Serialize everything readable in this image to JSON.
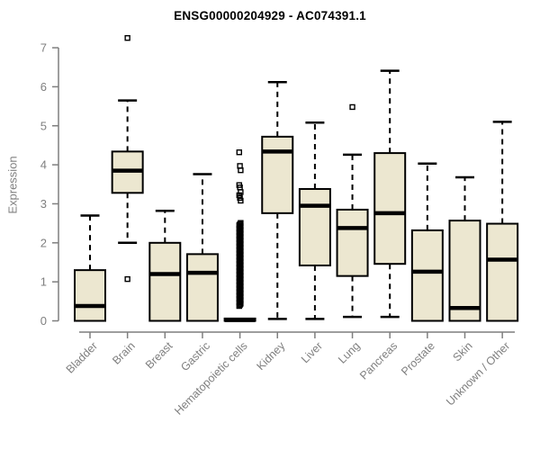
{
  "title": "ENSG00000204929 - AC074391.1",
  "chart_data": {
    "type": "box",
    "title": "ENSG00000204929 - AC074391.1",
    "ylabel": "Expression",
    "xlabel": "",
    "ylim": [
      0,
      7
    ],
    "yticks": [
      0,
      1,
      2,
      3,
      4,
      5,
      6,
      7
    ],
    "grid": false,
    "legend": "none",
    "colors": {
      "box_fill": "#ece7d0",
      "box_stroke": "#000000",
      "median": "#000000",
      "whisker": "#000000",
      "axis": "#7f7f7f",
      "tick_label": "#7f7f7f",
      "title": "#000000",
      "background": "#ffffff"
    },
    "categories": [
      "Bladder",
      "Brain",
      "Breast",
      "Gastric",
      "Hematopoietic cells",
      "Kidney",
      "Liver",
      "Lung",
      "Pancreas",
      "Prostate",
      "Skin",
      "Unknown / Other"
    ],
    "series": [
      {
        "name": "Bladder",
        "low": 0,
        "q1": 0,
        "median": 0.38,
        "q3": 1.3,
        "high": 2.7,
        "outliers": []
      },
      {
        "name": "Brain",
        "low": 2.0,
        "q1": 3.28,
        "median": 3.85,
        "q3": 4.34,
        "high": 5.65,
        "outliers": [
          7.25,
          1.07
        ]
      },
      {
        "name": "Breast",
        "low": 0,
        "q1": 0,
        "median": 1.2,
        "q3": 2.0,
        "high": 2.82,
        "outliers": []
      },
      {
        "name": "Gastric",
        "low": 0,
        "q1": 0,
        "median": 1.23,
        "q3": 1.71,
        "high": 3.76,
        "outliers": []
      },
      {
        "name": "Hematopoietic cells",
        "low": 0,
        "q1": 0,
        "median": 0.02,
        "q3": 0.06,
        "high": 0.06,
        "outliers": [
          4.32,
          3.97,
          3.86,
          3.48,
          3.42,
          3.3,
          3.22,
          3.15,
          3.08
        ],
        "outlier_band": {
          "from": 0.38,
          "to": 2.52,
          "step": 0.03
        }
      },
      {
        "name": "Kidney",
        "low": 0.05,
        "q1": 2.76,
        "median": 4.34,
        "q3": 4.72,
        "high": 6.12,
        "outliers": []
      },
      {
        "name": "Liver",
        "low": 0.05,
        "q1": 1.42,
        "median": 2.95,
        "q3": 3.38,
        "high": 5.08,
        "outliers": []
      },
      {
        "name": "Lung",
        "low": 0.1,
        "q1": 1.15,
        "median": 2.38,
        "q3": 2.85,
        "high": 4.26,
        "outliers": [
          5.48
        ]
      },
      {
        "name": "Pancreas",
        "low": 0.1,
        "q1": 1.46,
        "median": 2.76,
        "q3": 4.3,
        "high": 6.41,
        "outliers": []
      },
      {
        "name": "Prostate",
        "low": 0,
        "q1": 0,
        "median": 1.26,
        "q3": 2.32,
        "high": 4.03,
        "outliers": []
      },
      {
        "name": "Skin",
        "low": 0,
        "q1": 0,
        "median": 0.33,
        "q3": 2.57,
        "high": 3.68,
        "outliers": []
      },
      {
        "name": "Unknown / Other",
        "low": 0,
        "q1": 0,
        "median": 1.57,
        "q3": 2.49,
        "high": 5.1,
        "outliers": []
      }
    ]
  }
}
